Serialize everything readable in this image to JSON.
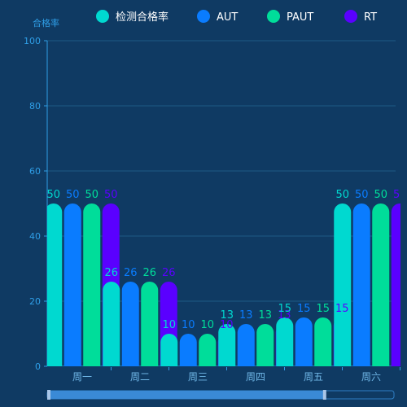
{
  "chart_data": {
    "type": "bar",
    "ylabel": "合格率",
    "ylim": [
      0,
      100
    ],
    "yticks": [
      0,
      20,
      40,
      60,
      80,
      100
    ],
    "grid": true,
    "legend_placement": "top-center",
    "categories": [
      "周一",
      "周二",
      "周三",
      "周四",
      "周五",
      "周六"
    ],
    "series": [
      {
        "name": "检测合格率",
        "color": "#00d9d0",
        "values": [
          50,
          26,
          10,
          13,
          15,
          50
        ]
      },
      {
        "name": "AUT",
        "color": "#0a7cff",
        "values": [
          50,
          26,
          10,
          13,
          15,
          50
        ]
      },
      {
        "name": "PAUT",
        "color": "#00dd9a",
        "values": [
          50,
          26,
          10,
          13,
          15,
          50
        ]
      },
      {
        "name": "RT",
        "color": "#5a00ff",
        "values": [
          50,
          26,
          10,
          13,
          15,
          50
        ]
      }
    ],
    "data_zoom": {
      "start": 0,
      "end": 80
    }
  }
}
